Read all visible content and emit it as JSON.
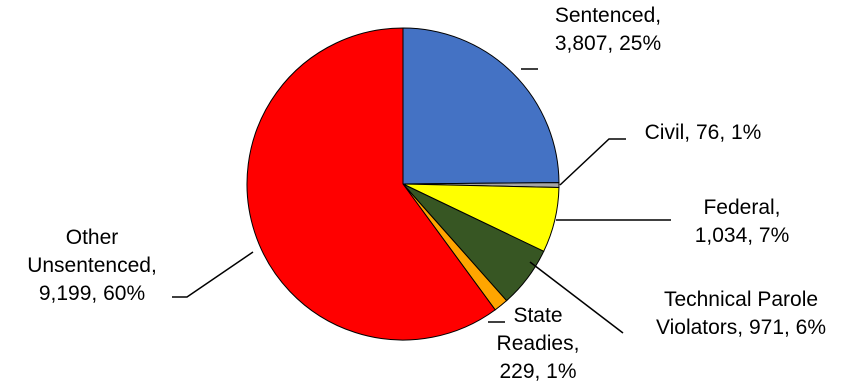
{
  "chart_data": {
    "type": "pie",
    "title": "",
    "legend": "none",
    "start_angle_deg": 0,
    "direction": "clockwise",
    "slices": [
      {
        "key": "sentenced",
        "value": 3807,
        "color": "#4472C4",
        "label_lines": [
          "Sentenced,",
          "3,807, 25%"
        ]
      },
      {
        "key": "civil",
        "value": 76,
        "color": "#A5A5A5",
        "label_lines": [
          "Civil, 76, 1%"
        ]
      },
      {
        "key": "federal",
        "value": 1034,
        "color": "#FFFF00",
        "label_lines": [
          "Federal,",
          "1,034, 7%"
        ]
      },
      {
        "key": "technical-parole",
        "value": 971,
        "color": "#375623",
        "label_lines": [
          "Technical Parole",
          "Violators, 971, 6%"
        ]
      },
      {
        "key": "state-readies",
        "value": 229,
        "color": "#FFA500",
        "label_lines": [
          "State",
          "Readies,",
          "229, 1%"
        ]
      },
      {
        "key": "other-unsentenced",
        "value": 9199,
        "color": "#FF0000",
        "label_lines": [
          "Other",
          "Unsentenced,",
          "9,199, 60%"
        ]
      }
    ]
  }
}
